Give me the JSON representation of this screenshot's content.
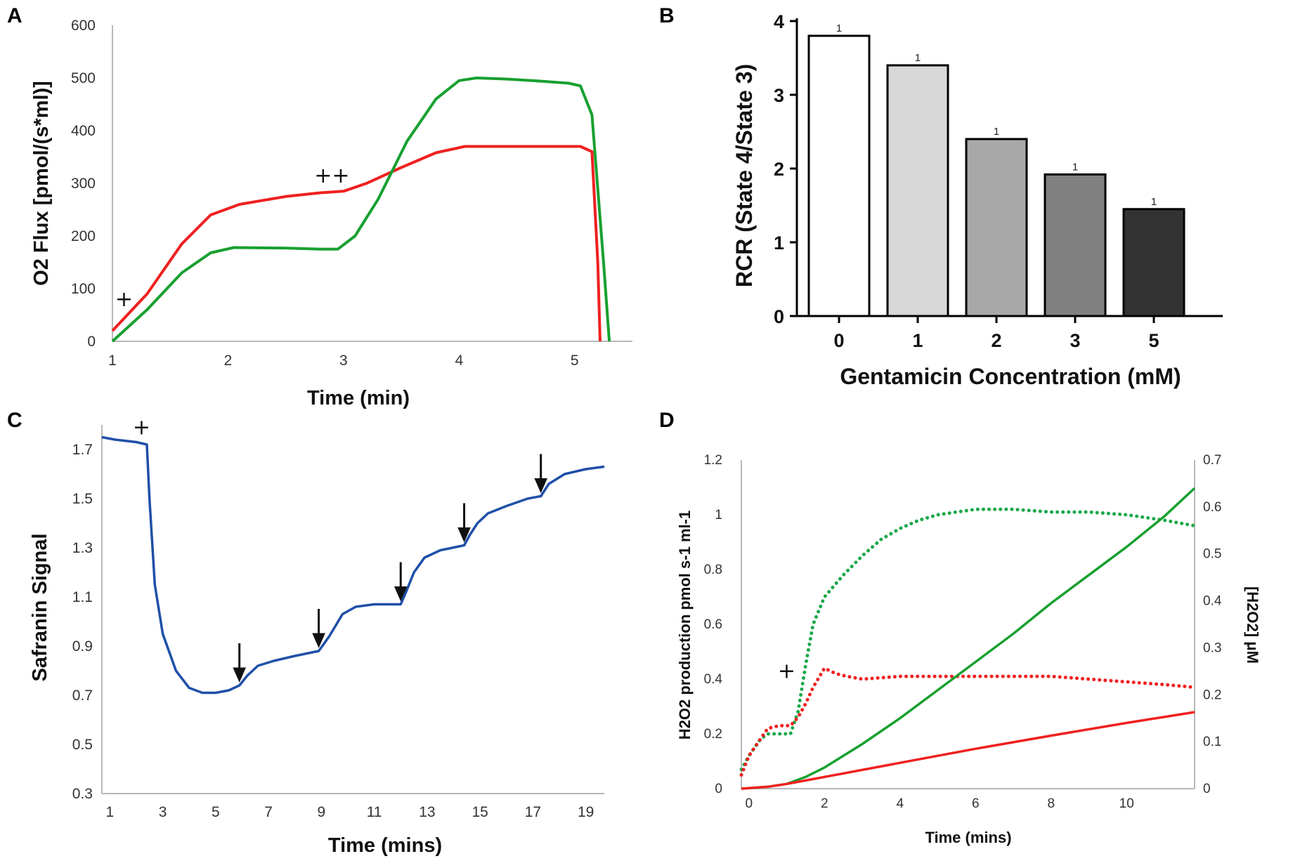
{
  "chart_data": [
    {
      "panel": "A",
      "type": "line",
      "xlabel": "Time (min)",
      "ylabel": "O2 Flux [pmol/(s*ml)]",
      "xlim": [
        1,
        5.5
      ],
      "ylim": [
        0,
        600
      ],
      "xticks": [
        "1",
        "2",
        "3",
        "4",
        "5"
      ],
      "yticks": [
        "0",
        "100",
        "200",
        "300",
        "400",
        "500",
        "600"
      ],
      "series": [
        {
          "name": "red",
          "color": "#ef2020",
          "x": [
            1.0,
            1.3,
            1.6,
            1.85,
            2.1,
            2.5,
            2.8,
            3.0,
            3.2,
            3.5,
            3.8,
            4.05,
            4.3,
            4.6,
            4.9,
            5.05,
            5.15,
            5.2,
            5.22
          ],
          "y": [
            20,
            90,
            185,
            240,
            260,
            275,
            282,
            285,
            300,
            330,
            358,
            370,
            370,
            370,
            370,
            370,
            360,
            150,
            0
          ]
        },
        {
          "name": "green",
          "color": "#18a030",
          "x": [
            1.0,
            1.3,
            1.6,
            1.85,
            2.05,
            2.5,
            2.8,
            2.95,
            3.1,
            3.3,
            3.55,
            3.8,
            4.0,
            4.15,
            4.4,
            4.7,
            4.95,
            5.05,
            5.15,
            5.25,
            5.3
          ],
          "y": [
            0,
            60,
            130,
            168,
            178,
            177,
            175,
            175,
            200,
            270,
            380,
            460,
            495,
            500,
            498,
            494,
            490,
            485,
            430,
            150,
            0
          ]
        }
      ],
      "annotations": [
        {
          "text": "+",
          "x": 1.1,
          "y": 80
        },
        {
          "text": "++",
          "x": 2.9,
          "y": 315
        }
      ]
    },
    {
      "panel": "B",
      "type": "bar",
      "categories": [
        "0",
        "1",
        "2",
        "3",
        "5"
      ],
      "values": [
        3.8,
        3.4,
        2.4,
        1.92,
        1.45
      ],
      "bar_colors": [
        "#ffffff",
        "#d8d8d8",
        "#a8a8a8",
        "#808080",
        "#333333"
      ],
      "bar_labels": [
        "1",
        "1",
        "1",
        "1",
        "1"
      ],
      "xlabel": "Gentamicin Concentration (mM)",
      "ylabel": "RCR (State 4/State 3)",
      "ylim": [
        0,
        4
      ],
      "yticks": [
        "0",
        "1",
        "2",
        "3",
        "4"
      ]
    },
    {
      "panel": "C",
      "type": "line",
      "xlabel": "Time (mins)",
      "ylabel": "Safranin Signal",
      "xlim": [
        0.7,
        19.7
      ],
      "ylim": [
        0.3,
        1.8
      ],
      "xticks": [
        "1",
        "3",
        "5",
        "7",
        "9",
        "11",
        "13",
        "15",
        "17",
        "19"
      ],
      "yticks": [
        "0.3",
        "0.5",
        "0.7",
        "0.9",
        "1.1",
        "1.3",
        "1.5",
        "1.7"
      ],
      "series": [
        {
          "name": "safranin",
          "color": "#1f4fa8",
          "x": [
            0.7,
            1.2,
            2.0,
            2.4,
            2.5,
            2.7,
            3.0,
            3.5,
            4.0,
            4.5,
            5.0,
            5.5,
            5.9,
            6.2,
            6.6,
            7.2,
            8.0,
            8.9,
            9.3,
            9.8,
            10.3,
            11.0,
            12.0,
            12.2,
            12.5,
            12.9,
            13.5,
            14.4,
            14.6,
            14.9,
            15.3,
            16.0,
            16.8,
            17.3,
            17.6,
            18.2,
            19.0,
            19.7
          ],
          "y": [
            1.75,
            1.74,
            1.73,
            1.72,
            1.5,
            1.15,
            0.95,
            0.8,
            0.73,
            0.71,
            0.71,
            0.72,
            0.74,
            0.78,
            0.82,
            0.84,
            0.86,
            0.88,
            0.94,
            1.03,
            1.06,
            1.07,
            1.07,
            1.12,
            1.2,
            1.26,
            1.29,
            1.31,
            1.35,
            1.4,
            1.44,
            1.47,
            1.5,
            1.51,
            1.56,
            1.6,
            1.62,
            1.63
          ]
        }
      ],
      "annotations": [
        {
          "text": "+",
          "x": 2.2,
          "y": 1.79
        }
      ],
      "arrow_times": [
        5.9,
        8.9,
        12.0,
        14.4,
        17.3
      ]
    },
    {
      "panel": "D",
      "type": "line",
      "xlabel": "Time (mins)",
      "ylabel": "H2O2 production pmol s-1 ml-1",
      "ylabel_right": "[H2O2] μM",
      "xlim": [
        -0.2,
        11.8
      ],
      "ylim": [
        0,
        1.2
      ],
      "ylim_right": [
        0,
        0.7
      ],
      "xticks": [
        "0",
        "2",
        "4",
        "6",
        "8",
        "10"
      ],
      "yticks": [
        "0",
        "0.2",
        "0.4",
        "0.6",
        "0.8",
        "1",
        "1.2"
      ],
      "yticks_right": [
        "0",
        "0.1",
        "0.2",
        "0.3",
        "0.4",
        "0.5",
        "0.6",
        "0.7"
      ],
      "series": [
        {
          "name": "green-dotted",
          "color": "#1aa84a",
          "style": "dotted",
          "axis": "left",
          "x": [
            -0.2,
            0.0,
            0.3,
            0.5,
            0.8,
            1.1,
            1.3,
            1.5,
            1.7,
            2.0,
            2.5,
            3.0,
            3.5,
            4.0,
            4.5,
            5.0,
            5.5,
            6.0,
            7.0,
            8.0,
            9.0,
            10.0,
            10.5,
            11.0,
            11.8
          ],
          "y": [
            0.07,
            0.12,
            0.18,
            0.2,
            0.2,
            0.2,
            0.28,
            0.45,
            0.6,
            0.7,
            0.78,
            0.85,
            0.91,
            0.95,
            0.98,
            1.0,
            1.01,
            1.02,
            1.02,
            1.01,
            1.01,
            1.0,
            0.99,
            0.98,
            0.96
          ]
        },
        {
          "name": "red-dotted",
          "color": "#ef2020",
          "style": "dotted",
          "axis": "left",
          "x": [
            -0.2,
            0.0,
            0.3,
            0.5,
            0.8,
            1.1,
            1.3,
            1.5,
            1.7,
            2.0,
            2.3,
            2.6,
            3.0,
            4.0,
            5.0,
            6.0,
            7.0,
            8.0,
            9.0,
            10.0,
            11.0,
            11.8
          ],
          "y": [
            0.05,
            0.12,
            0.18,
            0.22,
            0.23,
            0.23,
            0.26,
            0.31,
            0.37,
            0.44,
            0.42,
            0.41,
            0.4,
            0.41,
            0.41,
            0.41,
            0.41,
            0.41,
            0.4,
            0.39,
            0.38,
            0.37
          ]
        },
        {
          "name": "green-solid",
          "color": "#18a030",
          "style": "solid",
          "axis": "right",
          "x": [
            -0.2,
            0.5,
            1.0,
            1.5,
            2.0,
            3.0,
            4.0,
            5.0,
            6.0,
            7.0,
            8.0,
            9.0,
            10.0,
            11.0,
            11.8
          ],
          "y": [
            0.0,
            0.004,
            0.01,
            0.025,
            0.045,
            0.095,
            0.15,
            0.21,
            0.27,
            0.33,
            0.395,
            0.455,
            0.515,
            0.58,
            0.64
          ]
        },
        {
          "name": "red-solid",
          "color": "#ef2020",
          "style": "solid",
          "axis": "right",
          "x": [
            -0.2,
            0.5,
            1.0,
            2.0,
            4.0,
            6.0,
            8.0,
            10.0,
            11.8
          ],
          "y": [
            0.0,
            0.004,
            0.01,
            0.025,
            0.055,
            0.085,
            0.113,
            0.14,
            0.163
          ]
        }
      ],
      "annotations": [
        {
          "text": "+",
          "x": 1.0,
          "y": 0.43
        }
      ]
    }
  ]
}
